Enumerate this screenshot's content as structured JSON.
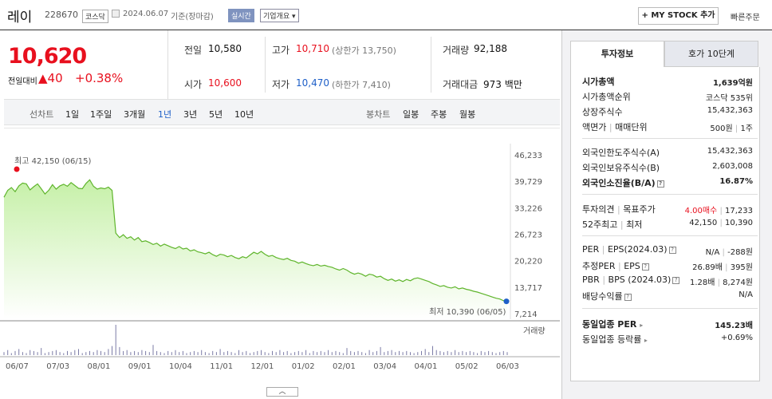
{
  "header": {
    "name": "레이",
    "code": "228670",
    "market": "코스닥",
    "date": "2024.06.07",
    "basis": "기준(장마감)",
    "realtime": "실시간",
    "company_info": "기업개요",
    "mystock": "+ MY STOCK 추가",
    "quick_order": "빠른주문"
  },
  "price": {
    "current": "10,620",
    "change_label": "전일대비",
    "change": "▲40",
    "change_pct": "+0.38%"
  },
  "summary": {
    "prev_label": "전일",
    "prev": "10,580",
    "high_label": "고가",
    "high": "10,710",
    "upper_limit": "(상한가 13,750)",
    "volume_label": "거래량",
    "volume": "92,188",
    "open_label": "시가",
    "open": "10,600",
    "low_label": "저가",
    "low": "10,470",
    "lower_limit": "(하한가 7,410)",
    "amount_label": "거래대금",
    "amount": "973 백만"
  },
  "period_bar": {
    "line_label": "선차트",
    "periods": [
      "1일",
      "1주일",
      "3개월",
      "1년",
      "3년",
      "5년",
      "10년"
    ],
    "selected": "1년",
    "candle_label": "봉차트",
    "candles": [
      "일봉",
      "주봉",
      "월봉"
    ]
  },
  "chart_data": {
    "type": "area",
    "y_ticks": [
      "46,233",
      "39,729",
      "33,226",
      "26,723",
      "20,220",
      "13,717",
      "7,214"
    ],
    "ylim": [
      7214,
      46233
    ],
    "x_ticks": [
      "06/07",
      "07/03",
      "08/01",
      "09/01",
      "10/04",
      "11/01",
      "12/01",
      "01/02",
      "02/01",
      "03/04",
      "04/01",
      "05/02",
      "06/03"
    ],
    "series": [
      {
        "values": [
          35800,
          37500,
          38200,
          37200,
          38600,
          39300,
          39100,
          37600,
          38400,
          39100,
          37900,
          36600,
          37500,
          38900,
          37800,
          38600,
          39000,
          38500,
          39400,
          38700,
          38000,
          37900,
          39200,
          40100,
          38500,
          37800,
          38100,
          37900,
          38300,
          37500,
          27000,
          25900,
          26600,
          25700,
          26100,
          25300,
          25900,
          24900,
          25100,
          24700,
          24200,
          24500,
          23800,
          24300,
          23900,
          23500,
          23200,
          23700,
          23100,
          23300,
          22600,
          22900,
          22400,
          22200,
          21900,
          22300,
          21700,
          21300,
          21800,
          21600,
          21200,
          21500,
          21000,
          20700,
          21200,
          20900,
          21600,
          22300,
          21900,
          22500,
          21800,
          21300,
          21500,
          21000,
          20700,
          20500,
          20800,
          20300,
          20100,
          19600,
          19900,
          19500,
          19200,
          19000,
          19300,
          18900,
          19100,
          18800,
          18600,
          18200,
          17900,
          18300,
          17900,
          17300,
          16900,
          17200,
          16900,
          16400,
          16900,
          16700,
          16200,
          16400,
          15800,
          15400,
          15700,
          15200,
          15500,
          15100,
          15600,
          15300,
          15800,
          16000,
          15700,
          15400,
          15100,
          14600,
          14300,
          13900,
          14100,
          13700,
          13500,
          13800,
          13300,
          13500,
          13200,
          13000,
          12700,
          12500,
          12200,
          11900,
          11600,
          11300,
          11000,
          10800,
          10400,
          10620
        ],
        "volume_shape": [
          3,
          5,
          2,
          4,
          6,
          3,
          2,
          5,
          4,
          3,
          7,
          2,
          3,
          4,
          5,
          3,
          2,
          4,
          3,
          5,
          6,
          2,
          3,
          4,
          3,
          5,
          4,
          3,
          6,
          9,
          30,
          8,
          4,
          5,
          3,
          4,
          3,
          5,
          4,
          3,
          10,
          4,
          3,
          2,
          4,
          3,
          5,
          3,
          4,
          2,
          3,
          4,
          3,
          5,
          3,
          2,
          4,
          3,
          6,
          3,
          4,
          3,
          2,
          5,
          3,
          4,
          2,
          3,
          4,
          5,
          3,
          2,
          4,
          3,
          5,
          3,
          4,
          2,
          3,
          4,
          3,
          5,
          2,
          4,
          3,
          4,
          3,
          5,
          3,
          4,
          3,
          2,
          7,
          4,
          3,
          4,
          3,
          2,
          5,
          3,
          4,
          8,
          3,
          4,
          5,
          3,
          4,
          3,
          4,
          3,
          2,
          3,
          4,
          6,
          3,
          9,
          5,
          4,
          3,
          4,
          3,
          5,
          3,
          4,
          3,
          4,
          3,
          2,
          4,
          3,
          4,
          3,
          2,
          3,
          4,
          3
        ]
      }
    ],
    "annotations": {
      "high": "최고 42,150 (06/15)",
      "low": "최저 10,390 (06/05)"
    },
    "volume_label": "거래량"
  },
  "colors": {
    "up": "#e8101e",
    "down": "#1e5fc8",
    "area_fill": "#c6f0a8",
    "line": "#5fb52c",
    "volume": "#7b7ba6"
  },
  "right_panel": {
    "tab_active": "투자정보",
    "tab_inactive": "호가 10단계",
    "rows1": [
      {
        "label": "시가총액",
        "value": "1,639억원",
        "bold": true
      },
      {
        "label": "시가총액순위",
        "value": "코스닥 535위"
      },
      {
        "label": "상장주식수",
        "value": "15,432,363"
      },
      {
        "label": "액면가",
        "label2": "매매단위",
        "value": "500원",
        "value2": "1주"
      }
    ],
    "rows2": [
      {
        "label": "외국인한도주식수(A)",
        "value": "15,432,363"
      },
      {
        "label": "외국인보유주식수(B)",
        "value": "2,603,008"
      },
      {
        "label": "외국인소진율(B/A)",
        "value": "16.87%",
        "bold": true
      }
    ],
    "rows3": [
      {
        "label": "투자의견",
        "label2": "목표주가",
        "value": "4.00매수",
        "value2": "17,233"
      },
      {
        "label": "52주최고",
        "label2": "최저",
        "value": "42,150",
        "value2": "10,390"
      }
    ],
    "rows4": [
      {
        "label": "PER",
        "label2": "EPS(2024.03)",
        "value": "N/A",
        "value2": "-288원"
      },
      {
        "label": "추정PER",
        "label2": "EPS",
        "value": "26.89배",
        "value2": "395원"
      },
      {
        "label": "PBR",
        "label2": "BPS (2024.03)",
        "value": "1.28배",
        "value2": "8,274원"
      },
      {
        "label": "배당수익률",
        "value": "N/A"
      }
    ],
    "rows5": [
      {
        "label": "동일업종 PER",
        "value": "145.23배",
        "bold": true
      },
      {
        "label": "동일업종 등락률",
        "value": "+0.69%"
      }
    ]
  },
  "collapse_icon": "chevron-up-icon"
}
